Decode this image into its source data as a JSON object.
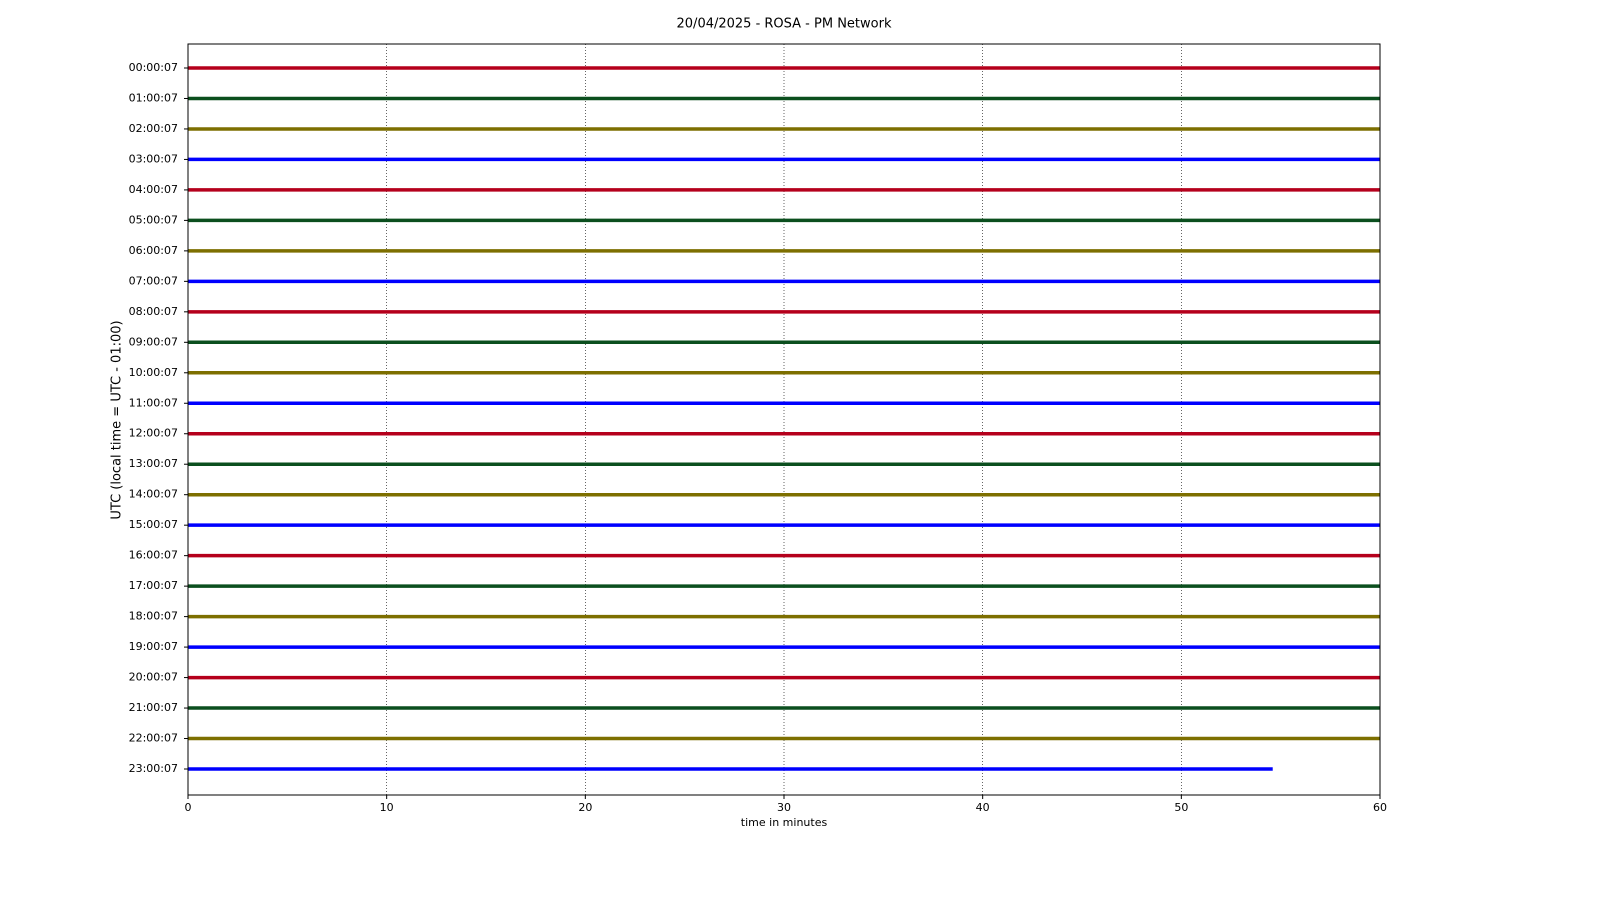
{
  "chart_data": {
    "type": "helicorder",
    "title": "20/04/2025 - ROSA - PM Network",
    "xlabel": "time in minutes",
    "ylabel": "UTC (local time = UTC - 01:00)",
    "xlim": [
      0,
      60
    ],
    "xticks": [
      0,
      10,
      20,
      30,
      40,
      50,
      60
    ],
    "grid": true,
    "series": [
      {
        "name": "00:00:07",
        "color": "#b5001c",
        "x": [
          0,
          60
        ]
      },
      {
        "name": "01:00:07",
        "color": "#0b4f1e",
        "x": [
          0,
          60
        ]
      },
      {
        "name": "02:00:07",
        "color": "#7d6f00",
        "x": [
          0,
          60
        ]
      },
      {
        "name": "03:00:07",
        "color": "#0000ff",
        "x": [
          0,
          60
        ]
      },
      {
        "name": "04:00:07",
        "color": "#b5001c",
        "x": [
          0,
          60
        ]
      },
      {
        "name": "05:00:07",
        "color": "#0b4f1e",
        "x": [
          0,
          60
        ]
      },
      {
        "name": "06:00:07",
        "color": "#7d6f00",
        "x": [
          0,
          60
        ]
      },
      {
        "name": "07:00:07",
        "color": "#0000ff",
        "x": [
          0,
          60
        ]
      },
      {
        "name": "08:00:07",
        "color": "#b5001c",
        "x": [
          0,
          60
        ]
      },
      {
        "name": "09:00:07",
        "color": "#0b4f1e",
        "x": [
          0,
          60
        ]
      },
      {
        "name": "10:00:07",
        "color": "#7d6f00",
        "x": [
          0,
          60
        ]
      },
      {
        "name": "11:00:07",
        "color": "#0000ff",
        "x": [
          0,
          60
        ]
      },
      {
        "name": "12:00:07",
        "color": "#b5001c",
        "x": [
          0,
          60
        ]
      },
      {
        "name": "13:00:07",
        "color": "#0b4f1e",
        "x": [
          0,
          60
        ]
      },
      {
        "name": "14:00:07",
        "color": "#7d6f00",
        "x": [
          0,
          60
        ]
      },
      {
        "name": "15:00:07",
        "color": "#0000ff",
        "x": [
          0,
          60
        ]
      },
      {
        "name": "16:00:07",
        "color": "#b5001c",
        "x": [
          0,
          60
        ]
      },
      {
        "name": "17:00:07",
        "color": "#0b4f1e",
        "x": [
          0,
          60
        ]
      },
      {
        "name": "18:00:07",
        "color": "#7d6f00",
        "x": [
          0,
          60
        ]
      },
      {
        "name": "19:00:07",
        "color": "#0000ff",
        "x": [
          0,
          60
        ]
      },
      {
        "name": "20:00:07",
        "color": "#b5001c",
        "x": [
          0,
          60
        ]
      },
      {
        "name": "21:00:07",
        "color": "#0b4f1e",
        "x": [
          0,
          60
        ]
      },
      {
        "name": "22:00:07",
        "color": "#7d6f00",
        "x": [
          0,
          60
        ]
      },
      {
        "name": "23:00:07",
        "color": "#0000ff",
        "x": [
          0,
          54.6
        ]
      }
    ]
  }
}
